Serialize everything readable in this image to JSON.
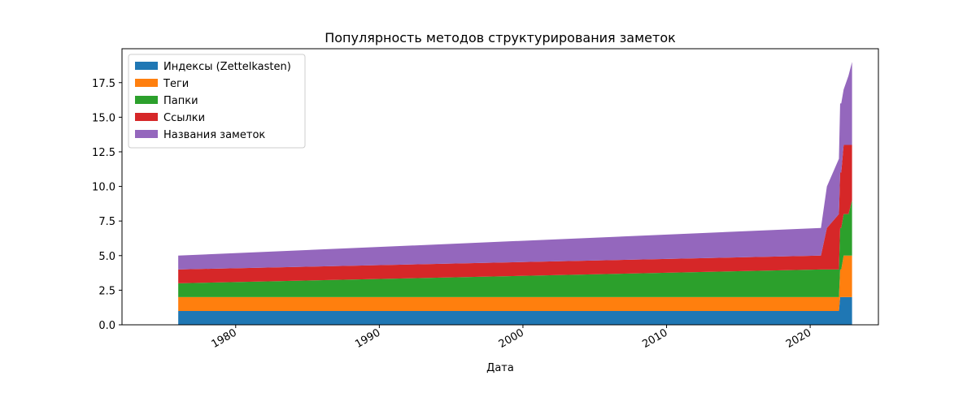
{
  "chart_data": {
    "type": "area",
    "stacked": true,
    "title": "Популярность методов структурирования заметок",
    "xlabel": "Дата",
    "ylabel": "",
    "x_type": "date",
    "xlim": [
      "1972-02-01",
      "2024-10-01"
    ],
    "ylim": [
      0,
      19.95
    ],
    "x_ticks": [
      "1980",
      "1990",
      "2000",
      "2010",
      "2020"
    ],
    "y_ticks": [
      "0.0",
      "2.5",
      "5.0",
      "7.5",
      "10.0",
      "12.5",
      "15.0",
      "17.5"
    ],
    "grid": false,
    "legend_position": "top-left",
    "x": [
      "1976-01-01",
      "2020-10-01",
      "2021-03-01",
      "2022-01-01",
      "2022-02-01",
      "2022-03-01",
      "2022-05-01",
      "2022-09-01",
      "2022-12-01"
    ],
    "series": [
      {
        "name": "Индексы (Zettelkasten)",
        "color": "#1f77b4",
        "values": [
          1,
          1,
          1,
          1,
          2,
          2,
          2,
          2,
          2
        ]
      },
      {
        "name": "Теги",
        "color": "#ff7f0e",
        "values": [
          1,
          1,
          1,
          1,
          2,
          2,
          3,
          3,
          3
        ]
      },
      {
        "name": "Папки",
        "color": "#2ca02c",
        "values": [
          1,
          2,
          2,
          2,
          3,
          3,
          3,
          3,
          4
        ]
      },
      {
        "name": "Ссылки",
        "color": "#d62728",
        "values": [
          1,
          1,
          3,
          4,
          4,
          4,
          5,
          5,
          4
        ]
      },
      {
        "name": "Названия заметок",
        "color": "#9467bd",
        "values": [
          1,
          2,
          3,
          4,
          5,
          5,
          4,
          5,
          6
        ]
      }
    ]
  }
}
